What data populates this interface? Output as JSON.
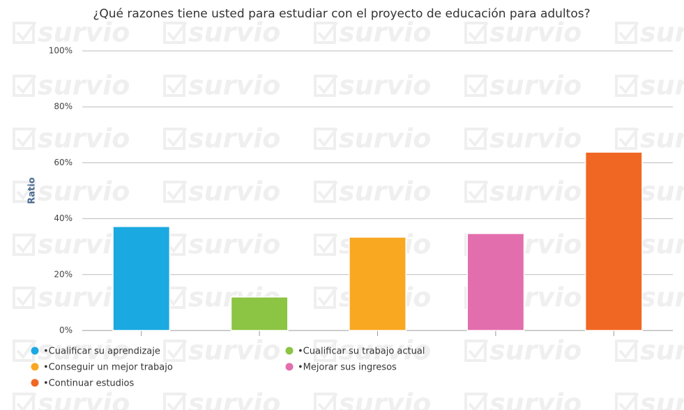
{
  "chart_data": {
    "type": "bar",
    "title": "¿Qué razones tiene usted para estudiar con el proyecto de educación para adultos?",
    "y_label": "Ratio",
    "watermark": "survio",
    "series": [
      {
        "name": "•Cualificar su aprendizaje",
        "color": "#1ba9e1",
        "values": [
          37.2
        ]
      },
      {
        "name": "•Cualificar su trabajo actual",
        "color": "#8cc443",
        "values": [
          12.0
        ]
      },
      {
        "name": "•Conseguir un mejor trabajo",
        "color": "#f9a822",
        "values": [
          33.4
        ]
      },
      {
        "name": "•Mejorar sus ingresos",
        "color": "#e36ead",
        "values": [
          34.7
        ]
      },
      {
        "name": "•Continuar estudios",
        "color": "#f06724",
        "values": [
          63.8
        ]
      }
    ],
    "ylim": [
      0,
      100
    ],
    "yticks": [
      {
        "value": 0,
        "label": "0%"
      },
      {
        "value": 20,
        "label": "20%"
      },
      {
        "value": 40,
        "label": "40%"
      },
      {
        "value": 60,
        "label": "60%"
      },
      {
        "value": 80,
        "label": "80%"
      },
      {
        "value": 100,
        "label": "100%"
      }
    ],
    "grid": true
  }
}
